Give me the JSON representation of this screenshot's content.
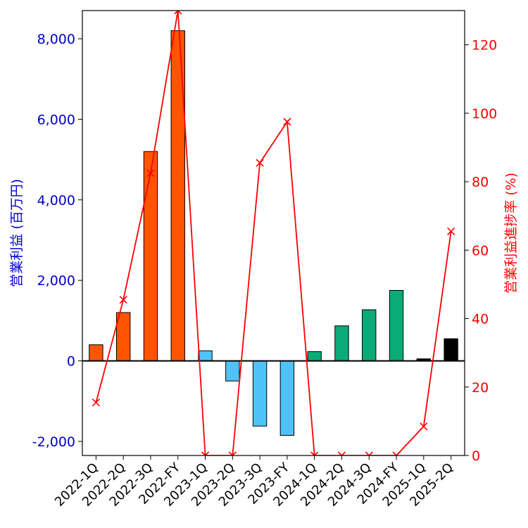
{
  "chart_data": {
    "type": "bar",
    "categories": [
      "2022-1Q",
      "2022-2Q",
      "2022-3Q",
      "2022-FY",
      "2023-1Q",
      "2023-2Q",
      "2023-3Q",
      "2023-FY",
      "2024-1Q",
      "2024-2Q",
      "2024-3Q",
      "2024-FY",
      "2025-1Q",
      "2025-2Q"
    ],
    "series": [
      {
        "name": "営業利益 (百万円)",
        "axis": "left",
        "kind": "bar",
        "values": [
          400,
          1200,
          5200,
          8200,
          250,
          -500,
          -1620,
          -1850,
          230,
          870,
          1270,
          1750,
          50,
          550
        ],
        "colors": [
          "#ff5500",
          "#ff5500",
          "#ff5500",
          "#ff5500",
          "#4fc3f7",
          "#4fc3f7",
          "#4fc3f7",
          "#4fc3f7",
          "#0aab78",
          "#0aab78",
          "#0aab78",
          "#0aab78",
          "#000000",
          "#000000"
        ]
      },
      {
        "name": "営業利益進捗率 (%)",
        "axis": "right",
        "kind": "line",
        "marker": "x",
        "color": "#ff0000",
        "values": [
          15.5,
          45.5,
          82.5,
          130,
          0,
          0,
          85.5,
          97.5,
          0,
          0,
          0,
          0,
          8.5,
          65.5
        ]
      }
    ],
    "ylabel_left": "営業利益 (百万円)",
    "ylabel_right": "営業利益進捗率 (%)",
    "ylim_left": [
      -2350,
      8700
    ],
    "ylim_right": [
      0,
      130
    ],
    "yticks_left": [
      -2000,
      0,
      2000,
      4000,
      6000,
      8000
    ],
    "yticks_left_labels": [
      "-2,000",
      "0",
      "2,000",
      "4,000",
      "6,000",
      "8,000"
    ],
    "yticks_right": [
      0,
      20,
      40,
      60,
      80,
      100,
      120
    ],
    "yticks_right_labels": [
      "0",
      "20",
      "40",
      "60",
      "80",
      "100",
      "120"
    ],
    "colors": {
      "left_axis": "#0000cc",
      "right_axis": "#ff0000",
      "zero_line": "#000000"
    }
  }
}
